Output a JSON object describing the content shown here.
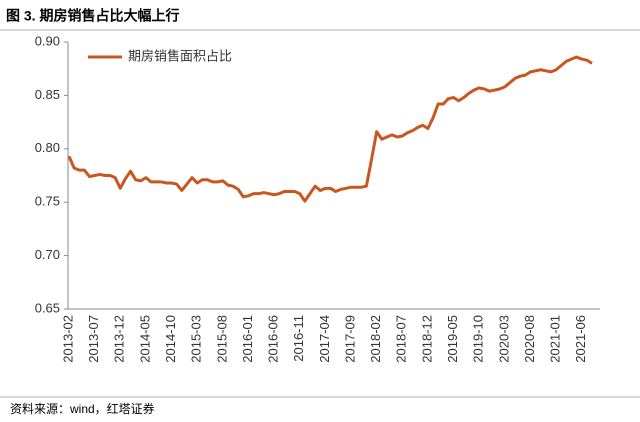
{
  "chart_data": {
    "type": "line",
    "title": "图 3. 期房销售占比大幅上行",
    "source": "资料来源：wind，红塔证券",
    "categories": [
      "2013-02",
      null,
      null,
      null,
      null,
      "2013-07",
      null,
      null,
      null,
      null,
      "2013-12",
      null,
      null,
      null,
      null,
      "2014-05",
      null,
      null,
      null,
      null,
      "2014-10",
      null,
      null,
      null,
      null,
      "2015-03",
      null,
      null,
      null,
      null,
      "2015-08",
      null,
      null,
      null,
      null,
      "2016-01",
      null,
      null,
      null,
      null,
      "2016-06",
      null,
      null,
      null,
      null,
      "2016-11",
      null,
      null,
      null,
      null,
      "2017-04",
      null,
      null,
      null,
      null,
      "2017-09",
      null,
      null,
      null,
      null,
      "2018-02",
      null,
      null,
      null,
      null,
      "2018-07",
      null,
      null,
      null,
      null,
      "2018-12",
      null,
      null,
      null,
      null,
      "2019-05",
      null,
      null,
      null,
      null,
      "2019-10",
      null,
      null,
      null,
      null,
      "2020-03",
      null,
      null,
      null,
      null,
      "2020-08",
      null,
      null,
      null,
      null,
      "2021-01",
      null,
      null,
      null,
      null,
      "2021-06",
      null,
      null
    ],
    "series": [
      {
        "name": "期房销售面积占比",
        "color": "#c8561f",
        "values": [
          0.793,
          0.782,
          0.78,
          0.78,
          0.774,
          0.775,
          0.776,
          0.775,
          0.775,
          0.773,
          0.763,
          0.772,
          0.779,
          0.771,
          0.77,
          0.773,
          0.769,
          0.769,
          0.769,
          0.768,
          0.768,
          0.767,
          0.761,
          0.767,
          0.773,
          0.768,
          0.771,
          0.771,
          0.769,
          0.769,
          0.77,
          0.766,
          0.765,
          0.762,
          0.755,
          0.756,
          0.758,
          0.758,
          0.759,
          0.758,
          0.757,
          0.758,
          0.76,
          0.76,
          0.76,
          0.758,
          0.751,
          0.758,
          0.765,
          0.761,
          0.763,
          0.763,
          0.76,
          0.762,
          0.763,
          0.764,
          0.764,
          0.764,
          0.765,
          0.79,
          0.816,
          0.809,
          0.811,
          0.813,
          0.811,
          0.812,
          0.815,
          0.817,
          0.82,
          0.822,
          0.819,
          0.829,
          0.842,
          0.842,
          0.847,
          0.848,
          0.845,
          0.848,
          0.852,
          0.855,
          0.857,
          0.856,
          0.854,
          0.855,
          0.856,
          0.858,
          0.862,
          0.866,
          0.868,
          0.869,
          0.872,
          0.873,
          0.874,
          0.873,
          0.872,
          0.874,
          0.878,
          0.882,
          0.884,
          0.886,
          0.884,
          0.883,
          0.88
        ]
      }
    ],
    "ylim": [
      0.65,
      0.9
    ],
    "yticks": [
      {
        "value": 0.65,
        "label": "0.65"
      },
      {
        "value": 0.7,
        "label": "0.70"
      },
      {
        "value": 0.75,
        "label": "0.75"
      },
      {
        "value": 0.8,
        "label": "0.80"
      },
      {
        "value": 0.85,
        "label": "0.85"
      },
      {
        "value": 0.9,
        "label": "0.90"
      }
    ],
    "legend": "top-left"
  }
}
